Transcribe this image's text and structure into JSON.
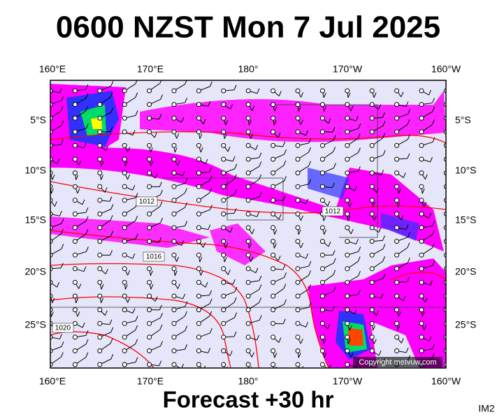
{
  "header": {
    "title": "0600 NZST Mon 7 Jul 2025"
  },
  "map": {
    "lon_labels": [
      "160°E",
      "170°E",
      "180°",
      "170°W",
      "160°W"
    ],
    "lat_labels": [
      "5°S",
      "10°S",
      "15°S",
      "20°S",
      "25°S"
    ],
    "isobar_labels": [
      "1012",
      "1012",
      "1016",
      "1020"
    ],
    "copyright": "Copyright metvuw.com"
  },
  "footer": {
    "forecast": "Forecast +30 hr",
    "image_id": "IM2"
  }
}
